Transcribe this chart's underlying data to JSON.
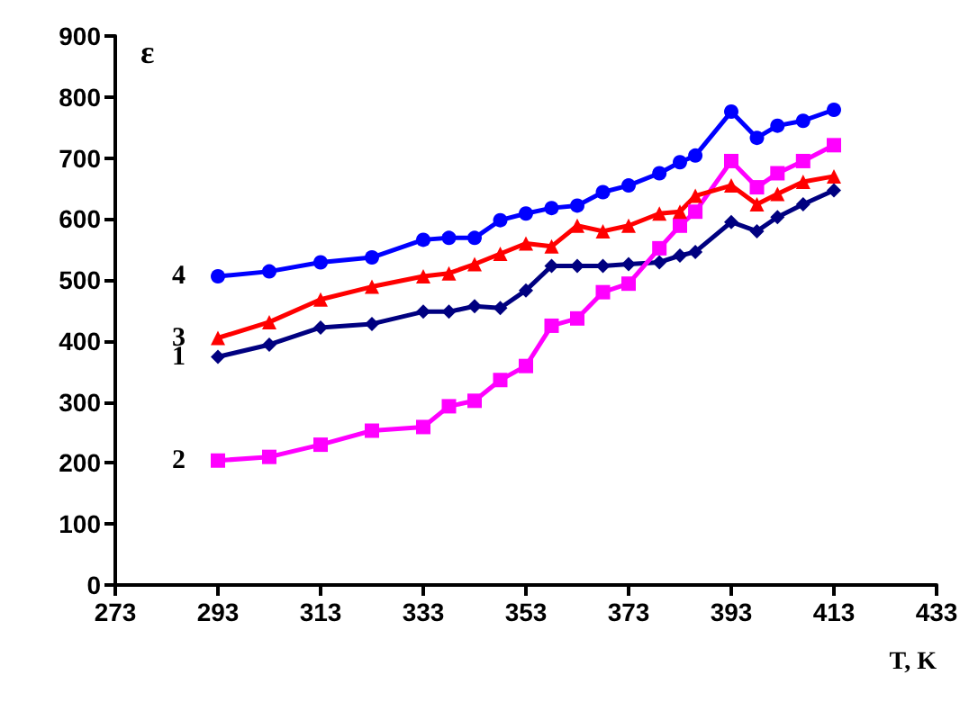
{
  "chart_data": {
    "type": "line",
    "xlabel": "T, K",
    "ylabel": "ε",
    "x": [
      293,
      303,
      313,
      323,
      333,
      338,
      343,
      348,
      353,
      358,
      363,
      368,
      373,
      379,
      383,
      386,
      393,
      398,
      402,
      407,
      413
    ],
    "series": [
      {
        "name": "1",
        "color": "#000080",
        "marker": "diamond",
        "values": [
          374,
          394,
          422,
          428,
          448,
          448,
          457,
          454,
          483,
          523,
          523,
          523,
          526,
          529,
          540,
          546,
          595,
          580,
          603,
          624,
          647
        ]
      },
      {
        "name": "2",
        "color": "#ff00ff",
        "marker": "square",
        "values": [
          204,
          210,
          230,
          253,
          259,
          293,
          302,
          336,
          359,
          425,
          437,
          480,
          494,
          552,
          589,
          612,
          695,
          652,
          675,
          695,
          721
        ]
      },
      {
        "name": "3",
        "color": "#ff0000",
        "marker": "triangle",
        "values": [
          405,
          431,
          468,
          489,
          506,
          511,
          526,
          543,
          560,
          555,
          589,
          580,
          589,
          609,
          612,
          638,
          655,
          624,
          641,
          661,
          670
        ]
      },
      {
        "name": "4",
        "color": "#0000ff",
        "marker": "circle",
        "values": [
          506,
          514,
          529,
          537,
          566,
          569,
          569,
          598,
          609,
          618,
          622,
          644,
          655,
          675,
          693,
          704,
          776,
          733,
          753,
          761,
          779
        ]
      }
    ],
    "xlim": [
      273,
      433
    ],
    "xticks": [
      273,
      293,
      313,
      333,
      353,
      373,
      393,
      413,
      433
    ],
    "ylim": [
      0,
      900
    ],
    "yticks": [
      0,
      100,
      200,
      300,
      400,
      500,
      600,
      700,
      800,
      900
    ],
    "grid": false,
    "legend": false,
    "line_style": "solid"
  }
}
